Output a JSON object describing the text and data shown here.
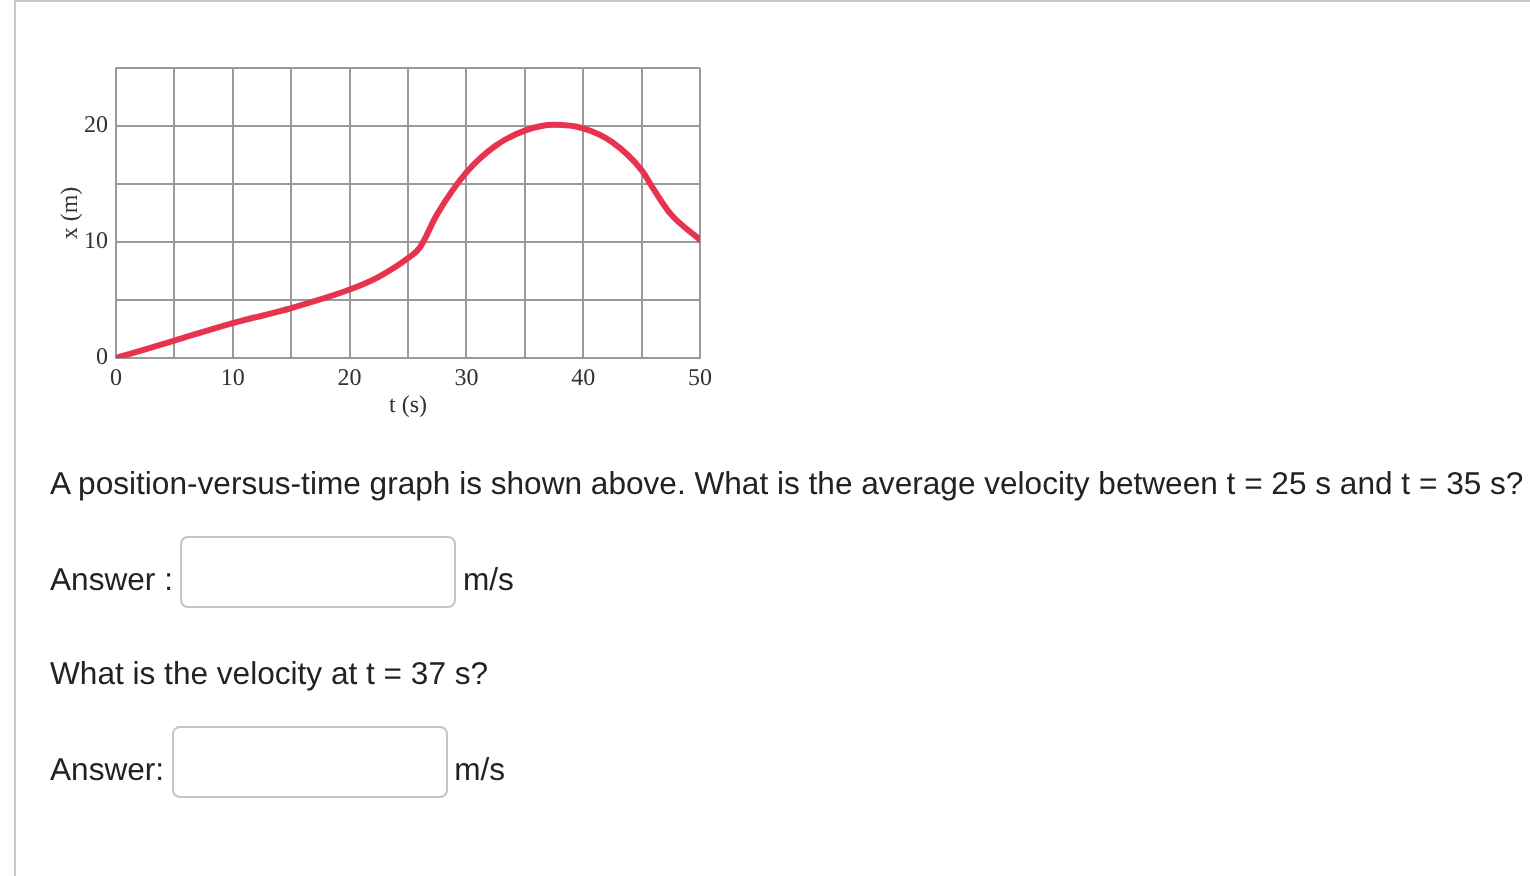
{
  "chart_data": {
    "type": "line",
    "xlabel": "t (s)",
    "ylabel": "x (m)",
    "x": [
      0,
      5,
      10,
      15,
      20,
      22.5,
      25,
      26,
      27.5,
      30,
      32.5,
      35,
      37.5,
      40,
      42.5,
      45,
      46,
      47.5,
      50
    ],
    "values": [
      0,
      1.5,
      3.0,
      4.3,
      5.9,
      7.0,
      8.6,
      9.5,
      12.4,
      16.0,
      18.3,
      19.6,
      20.1,
      19.8,
      18.6,
      16.2,
      14.6,
      12.4,
      10.2
    ],
    "color": "#e8334f",
    "marker": "none",
    "grid": true,
    "xlim": [
      0,
      50
    ],
    "xticks": [
      0,
      {
        "value": 5,
        "label": null
      },
      10,
      {
        "value": 15,
        "label": null
      },
      20,
      {
        "value": 25,
        "label": null
      },
      30,
      {
        "value": 35,
        "label": null
      },
      40,
      {
        "value": 45,
        "label": null
      },
      50
    ],
    "ylim": [
      0,
      25
    ],
    "yticks": [
      0,
      {
        "value": 5,
        "label": null
      },
      10,
      {
        "value": 15,
        "label": null
      },
      20,
      {
        "value": 25,
        "label": null
      }
    ],
    "annotations": [
      "A position-versus-time graph is shown above. What is the average velocity between t = 25 s and t = 35 s?",
      "Answer :",
      "m/s",
      "What is the velocity at t = 37 s?",
      "Answer:",
      "m/s"
    ]
  }
}
